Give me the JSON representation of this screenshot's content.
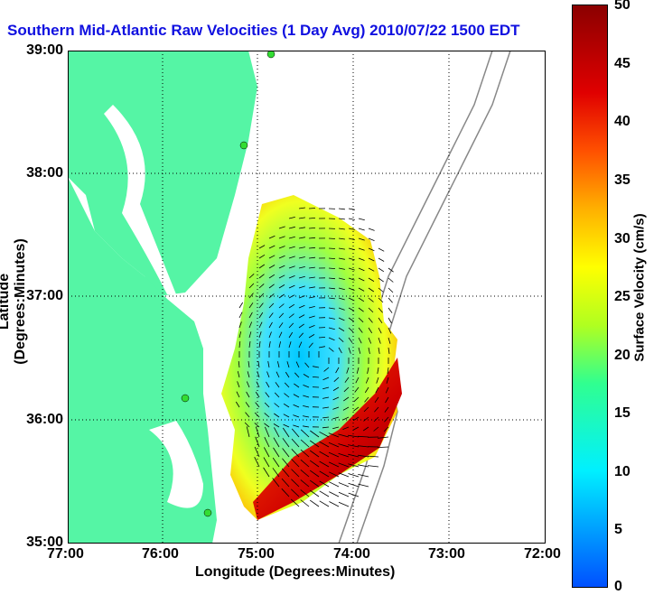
{
  "title": "Southern Mid-Atlantic Raw Velocities (1 Day Avg) 2010/07/22 1500 EDT",
  "xlabel": "Longitude (Degrees:Minutes)",
  "ylabel": "Latitude (Degrees:Minutes)",
  "x_ticks": [
    "77:00",
    "76:00",
    "75:00",
    "74:00",
    "73:00",
    "72:00"
  ],
  "y_ticks": [
    "39:00",
    "38:00",
    "37:00",
    "36:00",
    "35:00"
  ],
  "colorbar": {
    "label": "Surface Velocity (cm/s)",
    "ticks": [
      "50",
      "45",
      "40",
      "35",
      "30",
      "25",
      "20",
      "15",
      "10",
      "5",
      "0"
    ],
    "range": [
      0,
      50
    ],
    "colors": [
      "#0050ff",
      "#00f0ff",
      "#30ff90",
      "#ffff00",
      "#ff5000",
      "#8b0000"
    ]
  },
  "land_color": "#55f5a5",
  "chart_data": {
    "type": "heatmap",
    "title": "Southern Mid-Atlantic Raw Velocities (1 Day Avg) 2010/07/22 1500 EDT",
    "xlabel": "Longitude (Degrees:Minutes)",
    "ylabel": "Latitude (Degrees:Minutes)",
    "xlim": [
      "77:00 W",
      "72:00 W"
    ],
    "ylim": [
      "35:00 N",
      "39:00 N"
    ],
    "grid": true,
    "colorbar_range_cm_s": [
      0,
      50
    ]
  }
}
